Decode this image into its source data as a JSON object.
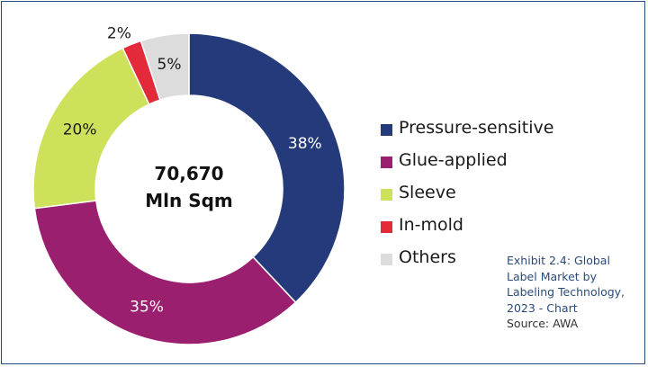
{
  "chart_data": {
    "type": "pie",
    "donut": true,
    "center_label": [
      "70,670",
      "Mln Sqm"
    ],
    "slices": [
      {
        "label": "Pressure-sensitive",
        "value": 38,
        "display": "38%",
        "color": "#243a7a"
      },
      {
        "label": "Glue-applied",
        "value": 35,
        "display": "35%",
        "color": "#9a1f6e"
      },
      {
        "label": "Sleeve",
        "value": 20,
        "display": "20%",
        "color": "#cfe05a"
      },
      {
        "label": "In-mold",
        "value": 2,
        "display": "2%",
        "color": "#e22a3a"
      },
      {
        "label": "Others",
        "value": 5,
        "display": "5%",
        "color": "#dcdcdc"
      }
    ],
    "legend_position": "right"
  },
  "caption": {
    "lines": [
      "Exhibit 2.4: Global",
      "Label Market by",
      "Labeling Technology,",
      "2023 - Chart"
    ],
    "source": "Source: AWA"
  }
}
